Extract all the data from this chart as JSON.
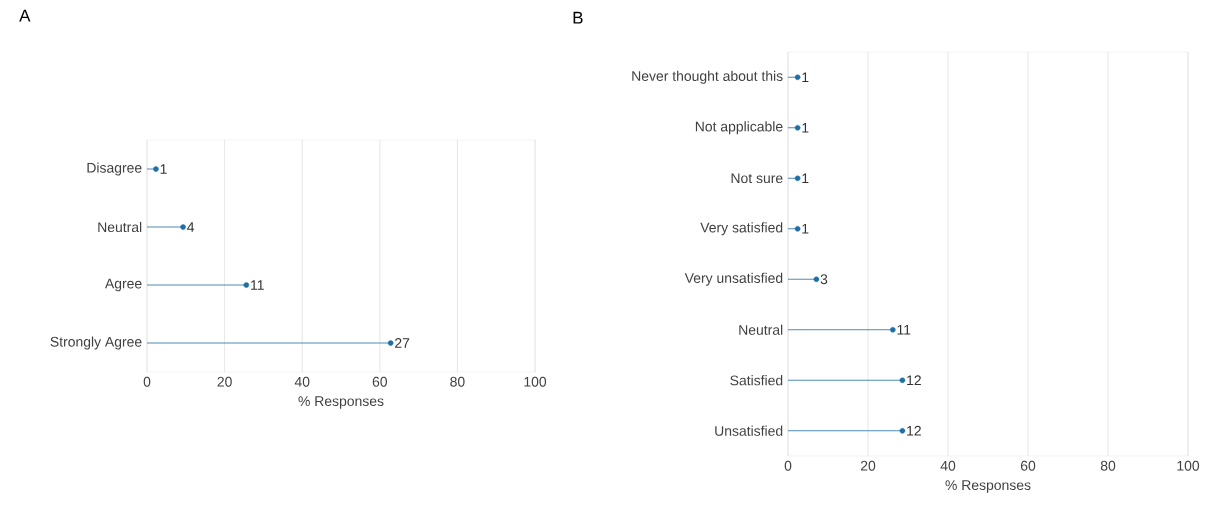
{
  "chart_data": [
    {
      "type": "lollipop",
      "title": "A",
      "orientation": "horizontal",
      "categories": [
        "Disagree",
        "Neutral",
        "Agree",
        "Strongly Agree"
      ],
      "values": [
        2.3,
        9.3,
        25.6,
        62.8
      ],
      "color": "#1f6fa6",
      "xlabel": "% Responses",
      "xlim": [
        0,
        100
      ],
      "xticks": [
        0,
        20,
        40,
        60,
        80,
        100
      ],
      "grid": "x",
      "marker": "circle",
      "annotations": [
        {
          "text": "1",
          "x": 2.3,
          "y": "Disagree"
        },
        {
          "text": "4",
          "x": 9.3,
          "y": "Neutral"
        },
        {
          "text": "11",
          "x": 25.6,
          "y": "Agree"
        },
        {
          "text": "27",
          "x": 62.8,
          "y": "Strongly Agree"
        }
      ]
    },
    {
      "type": "lollipop",
      "title": "B",
      "orientation": "horizontal",
      "categories": [
        "Never thought about this",
        "Not applicable",
        "Not sure",
        "Very satisfied",
        "Very unsatisfied",
        "Neutral",
        "Satisfied",
        "Unsatisfied"
      ],
      "values": [
        2.4,
        2.4,
        2.4,
        2.4,
        7.1,
        26.2,
        28.6,
        28.6
      ],
      "color": "#1f6fa6",
      "xlabel": "% Responses",
      "xlim": [
        0,
        100
      ],
      "xticks": [
        0,
        20,
        40,
        60,
        80,
        100
      ],
      "grid": "x",
      "marker": "circle",
      "annotations": [
        {
          "text": "1",
          "x": 2.4,
          "y": "Never thought about this"
        },
        {
          "text": "1",
          "x": 2.4,
          "y": "Not applicable"
        },
        {
          "text": "1",
          "x": 2.4,
          "y": "Not sure"
        },
        {
          "text": "1",
          "x": 2.4,
          "y": "Very satisfied"
        },
        {
          "text": "3",
          "x": 7.1,
          "y": "Very unsatisfied"
        },
        {
          "text": "11",
          "x": 26.2,
          "y": "Neutral"
        },
        {
          "text": "12",
          "x": 28.6,
          "y": "Satisfied"
        },
        {
          "text": "12",
          "x": 28.6,
          "y": "Unsatisfied"
        }
      ]
    }
  ]
}
